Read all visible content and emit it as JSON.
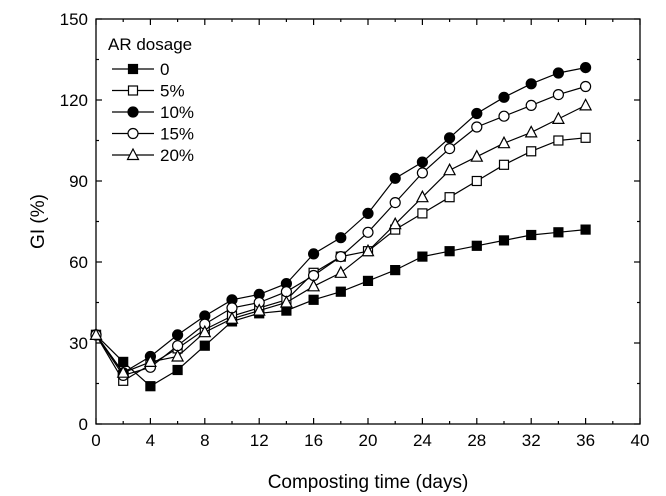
{
  "chart_data": {
    "type": "line",
    "xlabel": "Composting time (days)",
    "ylabel": "GI (%)",
    "xlim": [
      0,
      40
    ],
    "ylim": [
      0,
      150
    ],
    "xticks": [
      0,
      4,
      8,
      12,
      16,
      20,
      24,
      28,
      32,
      36,
      40
    ],
    "yticks": [
      0,
      30,
      60,
      90,
      120,
      150
    ],
    "grid": false,
    "legend": {
      "title": "AR dosage",
      "placement": "top-left"
    },
    "x": [
      0,
      2,
      4,
      6,
      8,
      10,
      12,
      14,
      16,
      18,
      20,
      22,
      24,
      26,
      28,
      30,
      32,
      34,
      36
    ],
    "series": [
      {
        "name": "0",
        "marker": "filled-square",
        "values": [
          33,
          23,
          14,
          20,
          29,
          38,
          41,
          42,
          46,
          49,
          53,
          57,
          62,
          64,
          66,
          68,
          70,
          71,
          72
        ]
      },
      {
        "name": "5%",
        "marker": "open-square",
        "values": [
          33,
          16,
          22,
          28,
          35,
          40,
          43,
          46,
          56,
          62,
          64,
          72,
          78,
          84,
          90,
          96,
          101,
          105,
          106
        ]
      },
      {
        "name": "10%",
        "marker": "filled-circle",
        "values": [
          33,
          19,
          25,
          33,
          40,
          46,
          48,
          52,
          63,
          69,
          78,
          91,
          97,
          106,
          115,
          121,
          126,
          130,
          132
        ]
      },
      {
        "name": "15%",
        "marker": "open-circle",
        "values": [
          33,
          18,
          21,
          29,
          37,
          43,
          45,
          49,
          55,
          62,
          71,
          82,
          93,
          102,
          110,
          114,
          118,
          122,
          125
        ]
      },
      {
        "name": "20%",
        "marker": "open-triangle",
        "values": [
          33,
          19,
          23,
          25,
          34,
          39,
          42,
          45,
          51,
          56,
          64,
          74,
          84,
          94,
          99,
          104,
          108,
          113,
          118
        ]
      }
    ]
  }
}
